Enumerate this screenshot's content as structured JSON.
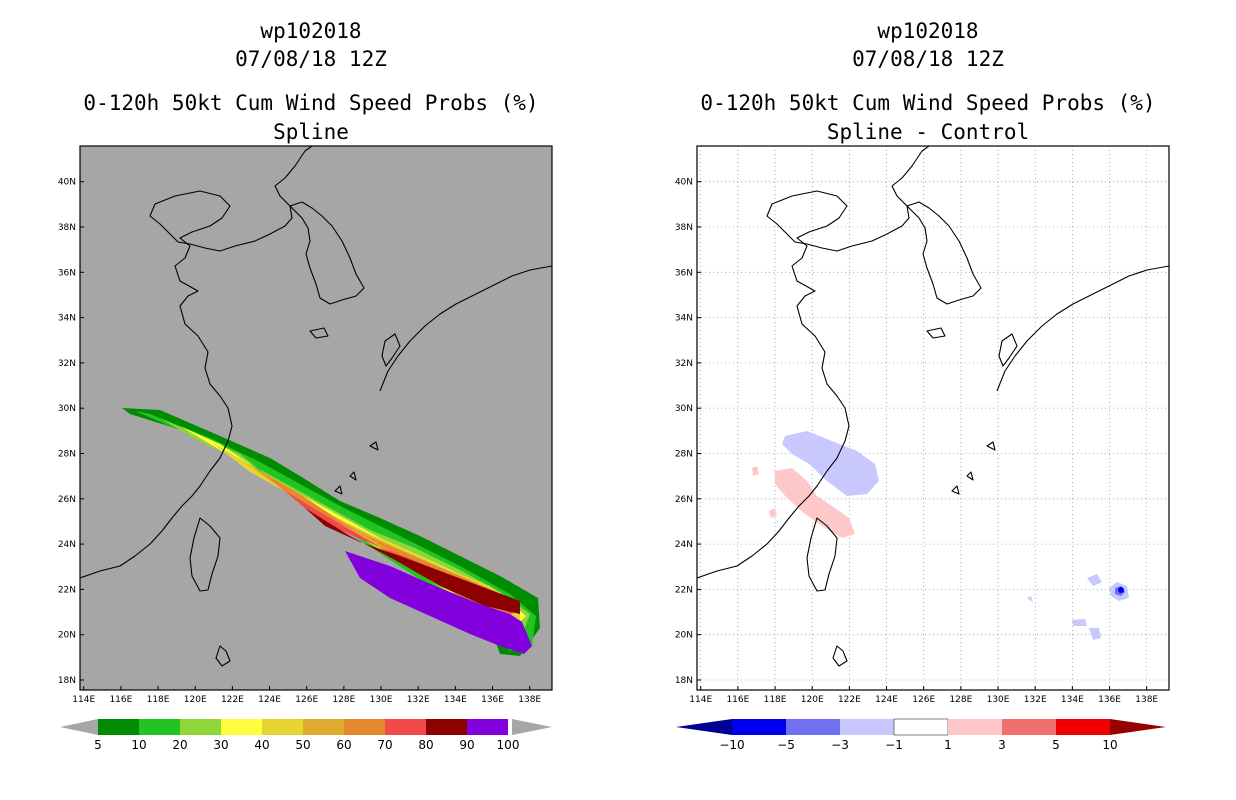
{
  "left_panel": {
    "title_line1": "wp102018",
    "title_line2": "07/08/18 12Z",
    "title_line3": "0-120h 50kt Cum Wind Speed Probs (%)",
    "title_line4": "Spline",
    "x_ticks": [
      "114E",
      "116E",
      "118E",
      "120E",
      "122E",
      "124E",
      "126E",
      "128E",
      "130E",
      "132E",
      "134E",
      "136E",
      "138E"
    ],
    "y_ticks": [
      "18N",
      "20N",
      "22N",
      "24N",
      "26N",
      "28N",
      "30N",
      "32N",
      "34N",
      "36N",
      "38N",
      "40N"
    ],
    "colorbar_labels": [
      "5",
      "10",
      "20",
      "30",
      "40",
      "50",
      "60",
      "70",
      "80",
      "90",
      "100"
    ],
    "colorbar_colors": [
      "#008c00",
      "#21c421",
      "#8fd63a",
      "#ffff40",
      "#e6d433",
      "#e0aa2e",
      "#e6892e",
      "#f04a4a",
      "#8c0000",
      "#8200dc"
    ],
    "background_color": "#a6a6a6"
  },
  "right_panel": {
    "title_line1": "wp102018",
    "title_line2": "07/08/18 12Z",
    "title_line3": "0-120h 50kt Cum Wind Speed Probs (%)",
    "title_line4": "Spline - Control",
    "x_ticks": [
      "114E",
      "116E",
      "118E",
      "120E",
      "122E",
      "124E",
      "126E",
      "128E",
      "130E",
      "132E",
      "134E",
      "136E",
      "138E"
    ],
    "y_ticks": [
      "18N",
      "20N",
      "22N",
      "24N",
      "26N",
      "28N",
      "30N",
      "32N",
      "34N",
      "36N",
      "38N",
      "40N"
    ],
    "colorbar_labels": [
      "-10",
      "-5",
      "-3",
      "-1",
      "1",
      "3",
      "5",
      "10"
    ],
    "colorbar_colors": [
      "#000096",
      "#0000f0",
      "#7070f0",
      "#c8c8ff",
      "#ffffff",
      "#ffc8c8",
      "#f07070",
      "#f00000",
      "#960000"
    ]
  }
}
